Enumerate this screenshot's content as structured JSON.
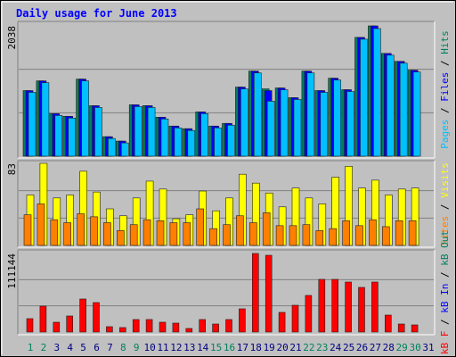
{
  "chart_data": [
    {
      "type": "bar",
      "title": "Daily usage for June 2013",
      "ylim": [
        0,
        2038
      ],
      "yticks": [
        2038
      ],
      "grid": true,
      "legend_separator": " / ",
      "series": [
        {
          "name": "Pages",
          "color": "#00c0ff",
          "values": [
            998,
            1150,
            637,
            596,
            1178,
            762,
            277,
            208,
            776,
            762,
            582,
            443,
            402,
            665,
            443,
            485,
            1053,
            1303,
            860,
            1039,
            887,
            1303,
            998,
            1192,
            1012,
            1830,
            1996,
            1580,
            1455,
            1317,
            0
          ]
        },
        {
          "name": "Files",
          "color": "#0000ff",
          "values": [
            1026,
            1178,
            665,
            624,
            1206,
            790,
            305,
            236,
            804,
            790,
            610,
            471,
            430,
            693,
            471,
            513,
            1081,
            1331,
            1026,
            1067,
            915,
            1331,
            1026,
            1220,
            1040,
            1858,
            2038,
            1608,
            1483,
            1345,
            0
          ]
        },
        {
          "name": "Hits",
          "color": "#00805c",
          "values": [
            1026,
            1178,
            665,
            624,
            1206,
            790,
            305,
            236,
            804,
            790,
            610,
            471,
            430,
            693,
            471,
            513,
            1081,
            1331,
            1053,
            1067,
            915,
            1331,
            1026,
            1220,
            1040,
            1858,
            2038,
            1608,
            1483,
            1345,
            0
          ]
        }
      ]
    },
    {
      "type": "bar",
      "ylim": [
        0,
        83
      ],
      "yticks": [
        83
      ],
      "grid": true,
      "legend_separator": " / ",
      "series": [
        {
          "name": "Sites",
          "color": "#ff8000",
          "values": [
            31,
            42,
            26,
            23,
            32,
            29,
            23,
            15,
            21,
            26,
            25,
            23,
            23,
            37,
            17,
            21,
            30,
            23,
            33,
            20,
            20,
            21,
            15,
            17,
            25,
            20,
            26,
            19,
            25,
            25,
            0
          ]
        },
        {
          "name": "Visits",
          "color": "#ffff00",
          "values": [
            51,
            83,
            48,
            51,
            75,
            54,
            37,
            30,
            48,
            65,
            57,
            27,
            31,
            55,
            35,
            48,
            72,
            63,
            53,
            39,
            58,
            48,
            42,
            69,
            80,
            58,
            66,
            51,
            57,
            58,
            0
          ]
        }
      ]
    },
    {
      "type": "bar",
      "ylim": [
        0,
        111144
      ],
      "yticks": [
        111144
      ],
      "grid": true,
      "legend_separator": " / ",
      "series": [
        {
          "name": "kB F",
          "color": "#ff0000",
          "values": [
            18945,
            36630,
            13893,
            22735,
            46735,
            41680,
            7579,
            6315,
            17683,
            17683,
            13893,
            12630,
            5052,
            17683,
            11368,
            17683,
            32840,
            111144,
            108618,
            27788,
            37890,
            51785,
            74520,
            74520,
            70731,
            63150,
            70731,
            23998,
            11368,
            10104,
            0
          ]
        }
      ],
      "other_legend": [
        {
          "name": "kB In",
          "color": "#0000ff"
        },
        {
          "name": "kB Out",
          "color": "#00805c"
        }
      ],
      "categories": [
        "1",
        "2",
        "3",
        "4",
        "5",
        "6",
        "7",
        "8",
        "9",
        "10",
        "11",
        "12",
        "13",
        "14",
        "15",
        "16",
        "17",
        "18",
        "19",
        "20",
        "21",
        "22",
        "23",
        "24",
        "25",
        "26",
        "27",
        "28",
        "29",
        "30",
        "31"
      ],
      "category_colors": [
        "#00805c",
        "#00805c",
        "#000080",
        "#000080",
        "#000080",
        "#000080",
        "#000080",
        "#00805c",
        "#00805c",
        "#000080",
        "#000080",
        "#000080",
        "#000080",
        "#000080",
        "#00805c",
        "#00805c",
        "#000080",
        "#000080",
        "#000080",
        "#000080",
        "#000080",
        "#00805c",
        "#00805c",
        "#000080",
        "#000080",
        "#000080",
        "#000080",
        "#000080",
        "#00805c",
        "#00805c",
        "#000080"
      ]
    }
  ]
}
